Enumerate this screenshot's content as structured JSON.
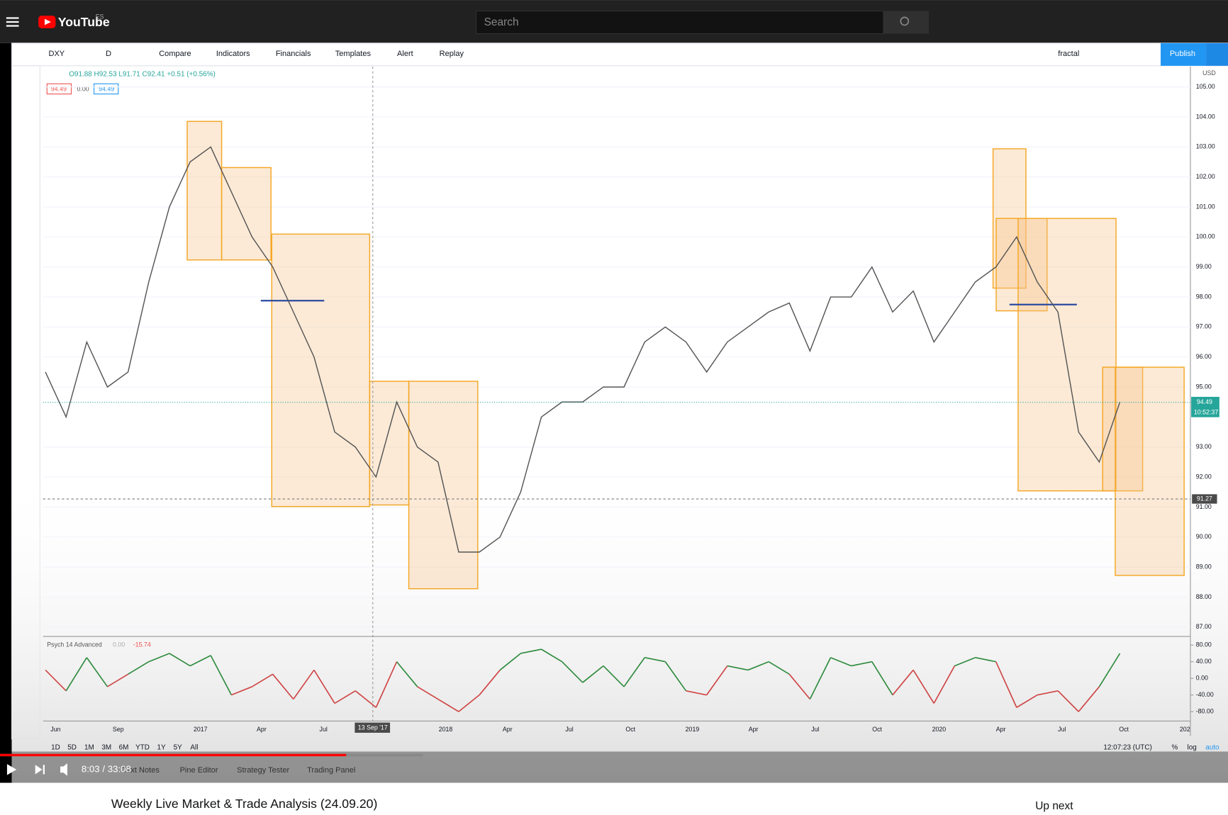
{
  "header": {
    "logo": "YouTube",
    "region": "ES",
    "search": "Search"
  },
  "toolbar": {
    "symbol": "DXY",
    "interval": "D",
    "buttons": [
      "Compare",
      "Indicators",
      "Financials",
      "Templates",
      "Alert",
      "Replay"
    ],
    "layout": "fractal",
    "publish": "Publish"
  },
  "legend": {
    "ohlc": "O91.88 H92.53 L91.71 C92.41 +0.51 (+0.56%)",
    "bid": "94.49",
    "spread": "0.00",
    "ask": "94.49"
  },
  "chart": {
    "currency": "USD",
    "yticks": [
      {
        "value": 105,
        "label": "105.00"
      },
      {
        "value": 104,
        "label": "104.00"
      },
      {
        "value": 103,
        "label": "103.00"
      },
      {
        "value": 102,
        "label": "102.00"
      },
      {
        "value": 101,
        "label": "101.00"
      },
      {
        "value": 100,
        "label": "100.00"
      },
      {
        "value": 99,
        "label": "99.00"
      },
      {
        "value": 98,
        "label": "98.00"
      },
      {
        "value": 97,
        "label": "97.00"
      },
      {
        "value": 96,
        "label": "96.00"
      },
      {
        "value": 95,
        "label": "95.00"
      },
      {
        "value": 93,
        "label": "93.00"
      },
      {
        "value": 92,
        "label": "92.00"
      },
      {
        "value": 91,
        "label": "91.00"
      },
      {
        "value": 90,
        "label": "90.00"
      },
      {
        "value": 89,
        "label": "89.00"
      },
      {
        "value": 88,
        "label": "88.00"
      },
      {
        "value": 87,
        "label": "87.00"
      }
    ],
    "price": [
      95.5,
      94,
      96.5,
      95,
      95.5,
      98.5,
      101,
      102.5,
      103,
      101.5,
      100,
      99,
      97.5,
      96,
      93.5,
      93,
      92,
      94.5,
      93,
      92.5,
      89.5,
      89.5,
      90,
      91.5,
      94,
      94.5,
      94.5,
      95,
      95,
      96.5,
      97,
      96.5,
      95.5,
      96.5,
      97,
      97.5,
      97.8,
      96.2,
      98,
      98,
      99,
      97.5,
      98.2,
      96.5,
      97.5,
      98.5,
      99,
      100,
      98.5,
      97.5,
      93.5,
      92.5,
      94.5
    ],
    "last_price": {
      "value": 94.49,
      "label": "94.49"
    },
    "countdown": "10:52:37",
    "crosshair": {
      "value": 91.27,
      "label": "91.27"
    },
    "crosshair_date": "13 Sep '17",
    "xticks": [
      "Jun",
      "Sep",
      "2017",
      "Apr",
      "Jul",
      "2018",
      "Apr",
      "Jul",
      "Oct",
      "2019",
      "Apr",
      "Jul",
      "Oct",
      "2020",
      "Apr",
      "Jul",
      "Oct",
      "202"
    ]
  },
  "psych": {
    "title": "Psych 14 Advanced",
    "value_a": "0.00",
    "value_b": "-15.74",
    "yticks": [
      {
        "value": 80,
        "label": "80.00"
      },
      {
        "value": 40,
        "label": "40.00"
      },
      {
        "value": 0,
        "label": "0.00"
      },
      {
        "value": -40,
        "label": "-40.00"
      },
      {
        "value": -80,
        "label": "-80.00"
      }
    ],
    "values": [
      20,
      -30,
      50,
      -20,
      10,
      40,
      60,
      30,
      55,
      -40,
      -20,
      10,
      -50,
      20,
      -60,
      -30,
      -70,
      40,
      -20,
      -50,
      -80,
      -40,
      20,
      60,
      70,
      40,
      -10,
      30,
      -20,
      50,
      40,
      -30,
      -40,
      30,
      20,
      40,
      10,
      -50,
      50,
      30,
      40,
      -40,
      20,
      -60,
      30,
      50,
      40,
      -70,
      -40,
      -30,
      -80,
      -20,
      60
    ]
  },
  "bottom": {
    "ranges": [
      "1D",
      "5D",
      "1M",
      "3M",
      "6M",
      "YTD",
      "1Y",
      "5Y",
      "All"
    ],
    "time": "12:07:23 (UTC)",
    "percent": "%",
    "log": "log",
    "auto": "auto",
    "tabs": [
      "Text Notes",
      "Pine Editor",
      "Strategy Tester",
      "Trading Panel"
    ]
  },
  "player": {
    "time": "8:03 / 33:08"
  },
  "video": {
    "title": "Weekly Live Market & Trade Analysis (24.09.20)",
    "up_next": "Up next"
  }
}
